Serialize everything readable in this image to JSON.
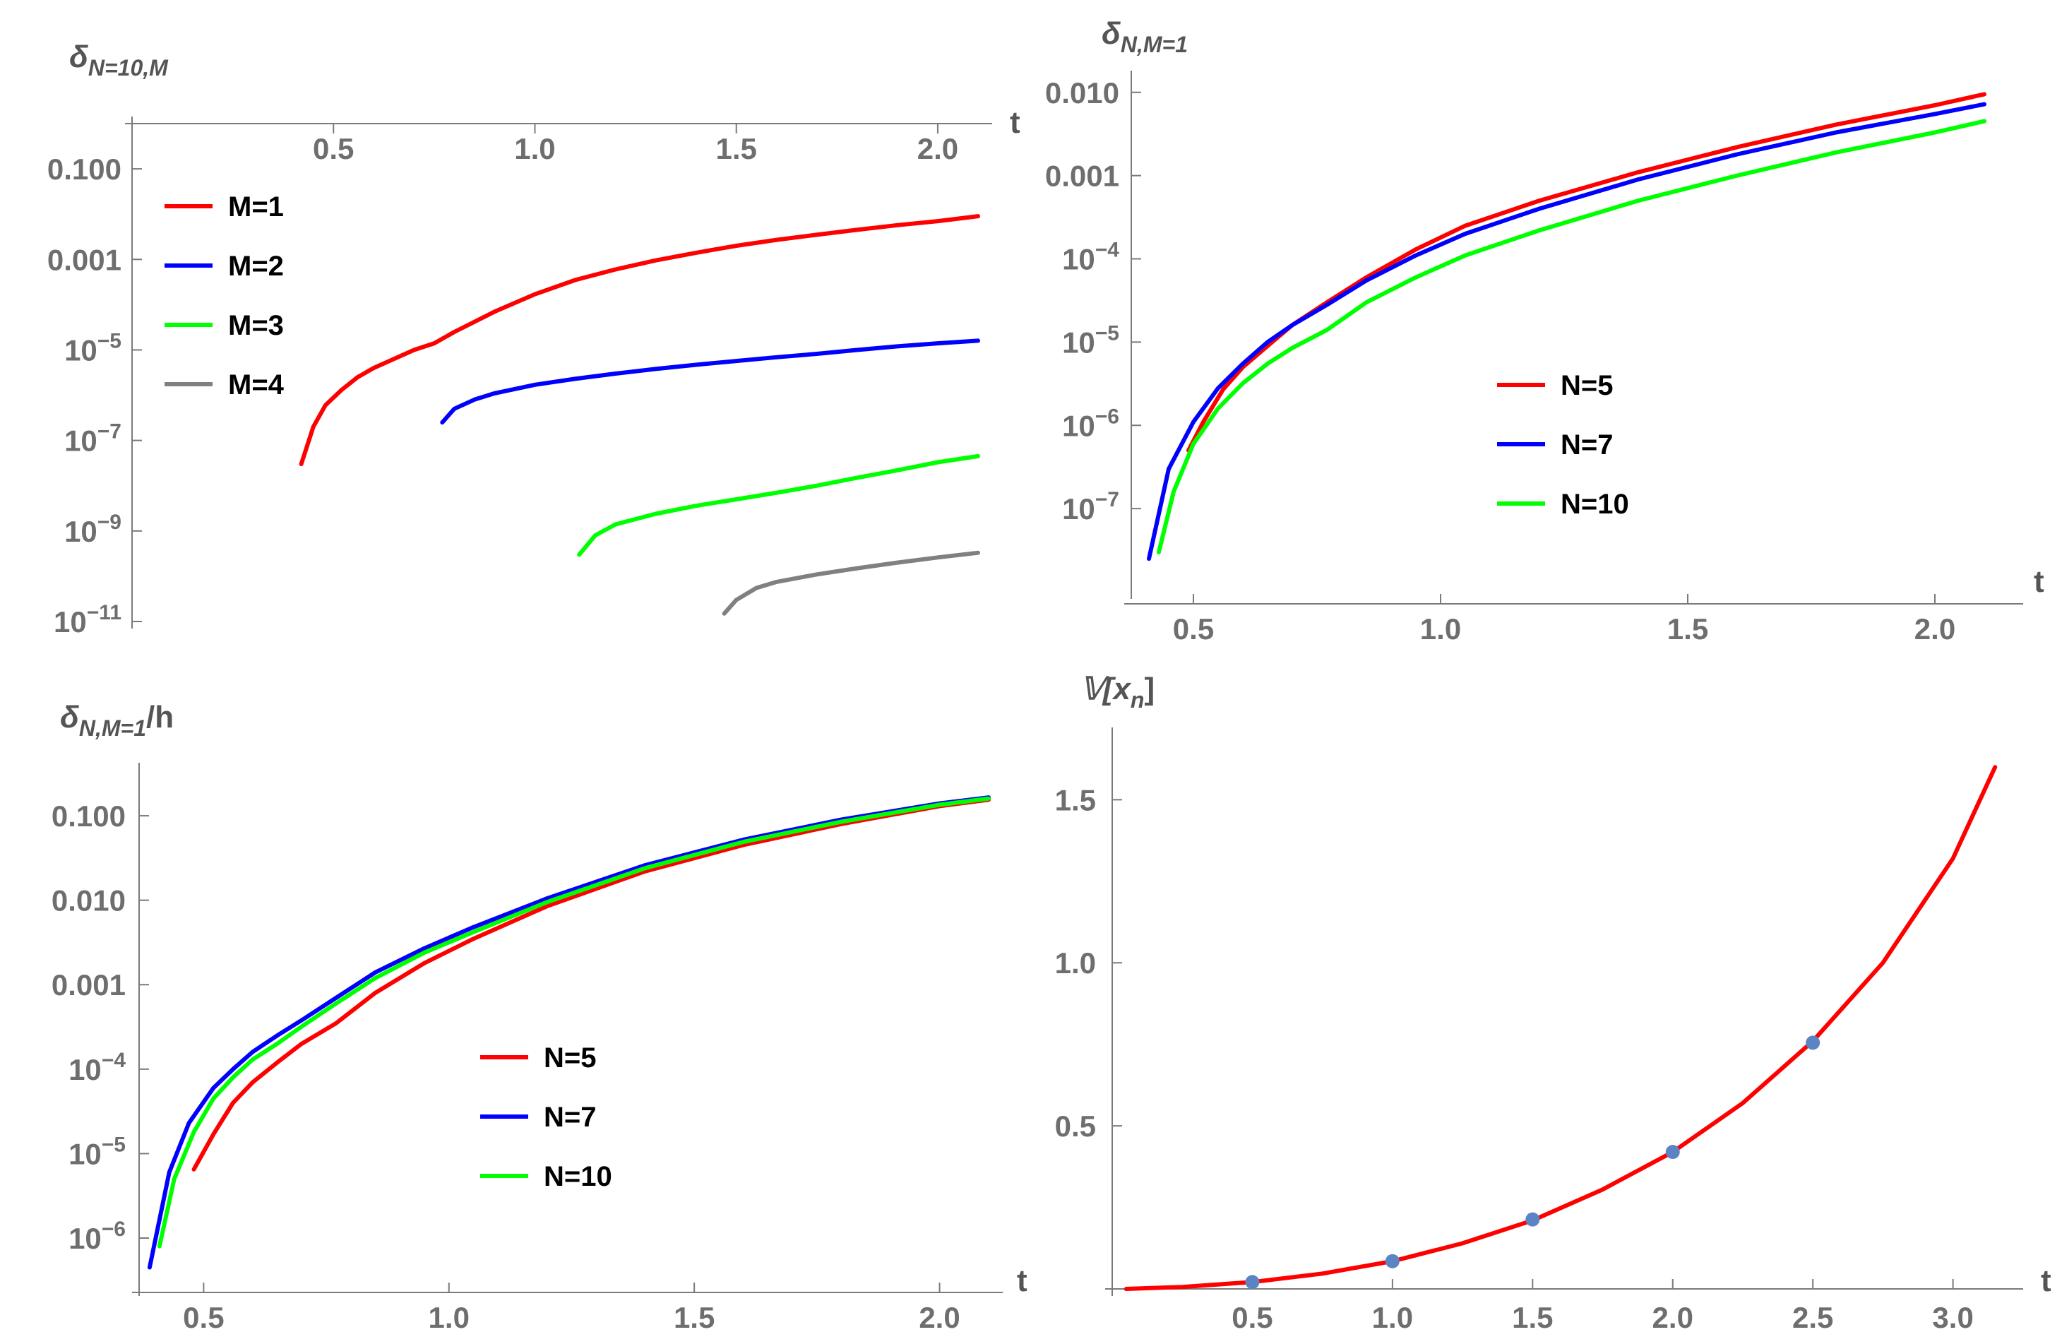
{
  "figure": {
    "panels": [
      {
        "title": "δ",
        "title_sub": "N=10,M",
        "xlabel": "t",
        "ylabel": ""
      },
      {
        "title": "δ",
        "title_sub": "N,M=1",
        "xlabel": "t",
        "ylabel": ""
      },
      {
        "title": "δ",
        "title_sub": "N,M=1",
        "title_tail": "/h",
        "xlabel": "t",
        "ylabel": ""
      },
      {
        "title": "𝕍[x",
        "title_sub": "n",
        "title_tail": "]",
        "xlabel": "t",
        "ylabel": ""
      }
    ]
  },
  "chart_data": [
    {
      "type": "line",
      "title": "δ_{N=10,M}",
      "xlabel": "t",
      "yscale": "log",
      "xlim": [
        0.0,
        2.1
      ],
      "ylim": [
        1e-11,
        1.0
      ],
      "x_axis_position": "top",
      "xticks": [
        0.5,
        1.0,
        1.5,
        2.0
      ],
      "xtick_labels": [
        "0.5",
        "1.0",
        "1.5",
        "2.0"
      ],
      "yticks": [
        1e-11,
        1e-09,
        1e-07,
        1e-05,
        0.001,
        0.1
      ],
      "ytick_labels": [
        {
          "base": "10",
          "exp": "−11"
        },
        {
          "base": "10",
          "exp": "−9"
        },
        {
          "base": "10",
          "exp": "−7"
        },
        {
          "base": "10",
          "exp": "−5"
        },
        {
          "base": "0.001",
          "exp": ""
        },
        {
          "base": "0.100",
          "exp": ""
        }
      ],
      "legend_position": "top-left",
      "series": [
        {
          "name": "M=1",
          "color": "#ff0000",
          "x": [
            0.42,
            0.45,
            0.48,
            0.52,
            0.56,
            0.6,
            0.65,
            0.7,
            0.75,
            0.8,
            0.9,
            1.0,
            1.1,
            1.2,
            1.3,
            1.4,
            1.5,
            1.6,
            1.7,
            1.8,
            1.9,
            2.0,
            2.1
          ],
          "y": [
            3e-08,
            2e-07,
            6e-07,
            1.3e-06,
            2.5e-06,
            4e-06,
            6.3e-06,
            1e-05,
            1.4e-05,
            2.5e-05,
            7e-05,
            0.00017,
            0.00035,
            0.0006,
            0.00095,
            0.0014,
            0.002,
            0.0027,
            0.0035,
            0.0045,
            0.0057,
            0.007,
            0.009
          ]
        },
        {
          "name": "M=2",
          "color": "#0000ff",
          "x": [
            0.77,
            0.8,
            0.85,
            0.9,
            1.0,
            1.1,
            1.2,
            1.3,
            1.4,
            1.5,
            1.6,
            1.7,
            1.8,
            1.9,
            2.0,
            2.1
          ],
          "y": [
            2.5e-07,
            5e-07,
            8e-07,
            1.1e-06,
            1.7e-06,
            2.3e-06,
            3e-06,
            3.8e-06,
            4.7e-06,
            5.7e-06,
            6.9e-06,
            8.2e-06,
            1e-05,
            1.2e-05,
            1.4e-05,
            1.6e-05
          ]
        },
        {
          "name": "M=3",
          "color": "#00ff00",
          "x": [
            1.11,
            1.15,
            1.2,
            1.3,
            1.4,
            1.5,
            1.6,
            1.7,
            1.8,
            1.9,
            2.0,
            2.1
          ],
          "y": [
            3e-10,
            8e-10,
            1.4e-09,
            2.4e-09,
            3.6e-09,
            5e-09,
            7e-09,
            1e-08,
            1.5e-08,
            2.2e-08,
            3.3e-08,
            4.5e-08
          ]
        },
        {
          "name": "M=4",
          "color": "#808080",
          "x": [
            1.47,
            1.5,
            1.55,
            1.6,
            1.7,
            1.8,
            1.9,
            2.0,
            2.1
          ],
          "y": [
            1.5e-11,
            3e-11,
            5.5e-11,
            7.5e-11,
            1.1e-10,
            1.5e-10,
            2e-10,
            2.6e-10,
            3.3e-10
          ]
        }
      ]
    },
    {
      "type": "line",
      "title": "δ_{N,M=1}",
      "xlabel": "t",
      "yscale": "log",
      "xlim": [
        0.4,
        2.15
      ],
      "ylim": [
        1e-08,
        0.015
      ],
      "x_axis_position": "bottom",
      "xticks": [
        0.5,
        1.0,
        1.5,
        2.0
      ],
      "xtick_labels": [
        "0.5",
        "1.0",
        "1.5",
        "2.0"
      ],
      "yticks": [
        1e-07,
        1e-06,
        1e-05,
        0.0001,
        0.001,
        0.01
      ],
      "ytick_labels": [
        {
          "base": "10",
          "exp": "−7"
        },
        {
          "base": "10",
          "exp": "−6"
        },
        {
          "base": "10",
          "exp": "−5"
        },
        {
          "base": "10",
          "exp": "−4"
        },
        {
          "base": "0.001",
          "exp": ""
        },
        {
          "base": "0.010",
          "exp": ""
        }
      ],
      "legend_position": "center",
      "series": [
        {
          "name": "N=5",
          "color": "#ff0000",
          "x": [
            0.49,
            0.52,
            0.56,
            0.6,
            0.65,
            0.7,
            0.77,
            0.85,
            0.95,
            1.05,
            1.2,
            1.4,
            1.6,
            1.8,
            2.0,
            2.1
          ],
          "y": [
            5e-07,
            1.1e-06,
            2.7e-06,
            5e-06,
            9e-06,
            1.6e-05,
            3e-05,
            6e-05,
            0.00013,
            0.00025,
            0.0005,
            0.0011,
            0.0022,
            0.0041,
            0.007,
            0.0095
          ]
        },
        {
          "name": "N=7",
          "color": "#0000ff",
          "x": [
            0.41,
            0.45,
            0.5,
            0.55,
            0.6,
            0.65,
            0.7,
            0.77,
            0.85,
            0.95,
            1.05,
            1.2,
            1.4,
            1.6,
            1.8,
            2.0,
            2.1
          ],
          "y": [
            2.5e-08,
            3e-07,
            1.1e-06,
            2.8e-06,
            5.5e-06,
            1e-05,
            1.6e-05,
            2.8e-05,
            5.5e-05,
            0.00011,
            0.0002,
            0.0004,
            0.0009,
            0.0018,
            0.0033,
            0.0055,
            0.0072
          ]
        },
        {
          "name": "N=10",
          "color": "#00ff00",
          "x": [
            0.43,
            0.46,
            0.5,
            0.55,
            0.6,
            0.65,
            0.7,
            0.77,
            0.85,
            0.95,
            1.05,
            1.2,
            1.4,
            1.6,
            1.8,
            2.0,
            2.1
          ],
          "y": [
            3e-08,
            1.6e-07,
            6e-07,
            1.6e-06,
            3.2e-06,
            5.5e-06,
            8.5e-06,
            1.4e-05,
            3e-05,
            6e-05,
            0.00011,
            0.00022,
            0.0005,
            0.001,
            0.0019,
            0.0033,
            0.0045
          ]
        }
      ]
    },
    {
      "type": "line",
      "title": "δ_{N,M=1}/h",
      "xlabel": "t",
      "yscale": "log",
      "xlim": [
        0.38,
        2.1
      ],
      "ylim": [
        2.5e-07,
        0.35
      ],
      "x_axis_position": "bottom",
      "xticks": [
        0.5,
        1.0,
        1.5,
        2.0
      ],
      "xtick_labels": [
        "0.5",
        "1.0",
        "1.5",
        "2.0"
      ],
      "yticks": [
        1e-06,
        1e-05,
        0.0001,
        0.001,
        0.01,
        0.1
      ],
      "ytick_labels": [
        {
          "base": "10",
          "exp": "−6"
        },
        {
          "base": "10",
          "exp": "−5"
        },
        {
          "base": "10",
          "exp": "−4"
        },
        {
          "base": "0.001",
          "exp": ""
        },
        {
          "base": "0.010",
          "exp": ""
        },
        {
          "base": "0.100",
          "exp": ""
        }
      ],
      "legend_position": "center",
      "series": [
        {
          "name": "N=5",
          "color": "#ff0000",
          "x": [
            0.48,
            0.52,
            0.56,
            0.6,
            0.65,
            0.7,
            0.77,
            0.85,
            0.95,
            1.05,
            1.2,
            1.4,
            1.6,
            1.8,
            2.0,
            2.1
          ],
          "y": [
            6.5e-06,
            1.7e-05,
            4e-05,
            7e-05,
            0.00012,
            0.0002,
            0.00035,
            0.0008,
            0.0018,
            0.0035,
            0.0085,
            0.022,
            0.045,
            0.08,
            0.13,
            0.155
          ]
        },
        {
          "name": "N=7",
          "color": "#0000ff",
          "x": [
            0.39,
            0.43,
            0.47,
            0.52,
            0.56,
            0.6,
            0.65,
            0.7,
            0.77,
            0.85,
            0.95,
            1.05,
            1.2,
            1.4,
            1.6,
            1.8,
            2.0,
            2.1
          ],
          "y": [
            4.5e-07,
            6e-06,
            2.3e-05,
            6e-05,
            0.0001,
            0.00016,
            0.00025,
            0.00038,
            0.0007,
            0.0014,
            0.0027,
            0.0048,
            0.0105,
            0.026,
            0.052,
            0.09,
            0.14,
            0.165
          ]
        },
        {
          "name": "N=10",
          "color": "#00ff00",
          "x": [
            0.41,
            0.44,
            0.48,
            0.52,
            0.56,
            0.6,
            0.65,
            0.7,
            0.77,
            0.85,
            0.95,
            1.05,
            1.2,
            1.4,
            1.6,
            1.8,
            2.0,
            2.1
          ],
          "y": [
            8e-07,
            5e-06,
            1.8e-05,
            4.5e-05,
            8e-05,
            0.00013,
            0.0002,
            0.00032,
            0.0006,
            0.0012,
            0.0024,
            0.0042,
            0.0095,
            0.024,
            0.049,
            0.085,
            0.135,
            0.16
          ]
        }
      ]
    },
    {
      "type": "line",
      "title": "𝕍[x_n]",
      "xlabel": "t",
      "yscale": "linear",
      "xlim": [
        0.0,
        3.2
      ],
      "ylim": [
        0.0,
        1.7
      ],
      "x_axis_position": "bottom",
      "xticks": [
        0.5,
        1.0,
        1.5,
        2.0,
        2.5,
        3.0
      ],
      "xtick_labels": [
        "0.5",
        "1.0",
        "1.5",
        "2.0",
        "2.5",
        "3.0"
      ],
      "yticks": [
        0.5,
        1.0,
        1.5
      ],
      "ytick_labels": [
        {
          "base": "0.5",
          "exp": ""
        },
        {
          "base": "1.0",
          "exp": ""
        },
        {
          "base": "1.5",
          "exp": ""
        }
      ],
      "legend_position": "none",
      "series": [
        {
          "name": "",
          "color": "#ff0000",
          "kind": "curve",
          "x": [
            0.05,
            0.25,
            0.5,
            0.75,
            1.0,
            1.25,
            1.5,
            1.75,
            2.0,
            2.25,
            2.5,
            2.75,
            3.0,
            3.15
          ],
          "y": [
            0.0,
            0.006,
            0.021,
            0.047,
            0.085,
            0.14,
            0.21,
            0.305,
            0.42,
            0.57,
            0.76,
            1.0,
            1.32,
            1.6
          ]
        },
        {
          "name": "",
          "color": "#5b84c4",
          "kind": "points",
          "x": [
            0.5,
            1.0,
            1.5,
            2.0,
            2.5
          ],
          "y": [
            0.021,
            0.085,
            0.213,
            0.42,
            0.755
          ]
        }
      ]
    }
  ]
}
